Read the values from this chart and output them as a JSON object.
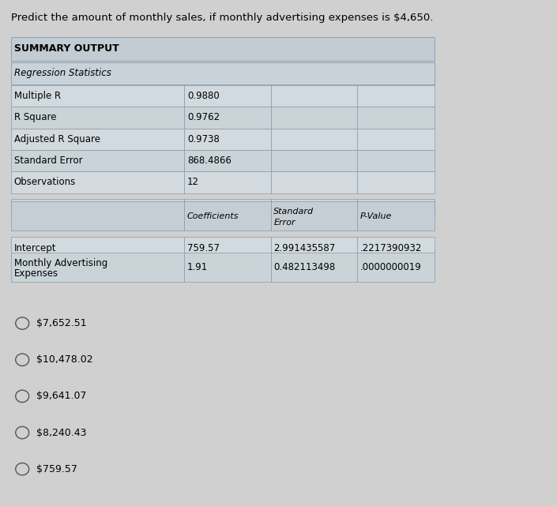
{
  "title": "Predict the amount of monthly sales, if monthly advertising expenses is $4,650.",
  "bg_color": "#d0d0d0",
  "table_bg": "#c8c8c8",
  "header_bg": "#c8c8c8",
  "cell_bg": "#d8d8d8",
  "summary_header": "SUMMARY OUTPUT",
  "regression_label": "Regression Statistics",
  "stats_rows": [
    [
      "Multiple R",
      "0.9880",
      "",
      ""
    ],
    [
      "R Square",
      "0.9762",
      "",
      ""
    ],
    [
      "Adjusted R Square",
      "0.9738",
      "",
      ""
    ],
    [
      "Standard Error",
      "868.4866",
      "",
      ""
    ],
    [
      "Observations",
      "12",
      "",
      ""
    ]
  ],
  "col_headers": [
    "",
    "Coefficients",
    "Standard\nError",
    "P-Value"
  ],
  "coeff_rows": [
    [
      "Intercept",
      "759.57",
      "2.991435587",
      ".2217390932"
    ],
    [
      "Monthly Advertising\nExpenses",
      "1.91",
      "0.482113498",
      ".0000000019"
    ]
  ],
  "options": [
    "$7,652.51",
    "$10,478.02",
    "$9,641.07",
    "$8,240.43",
    "$759.57"
  ]
}
